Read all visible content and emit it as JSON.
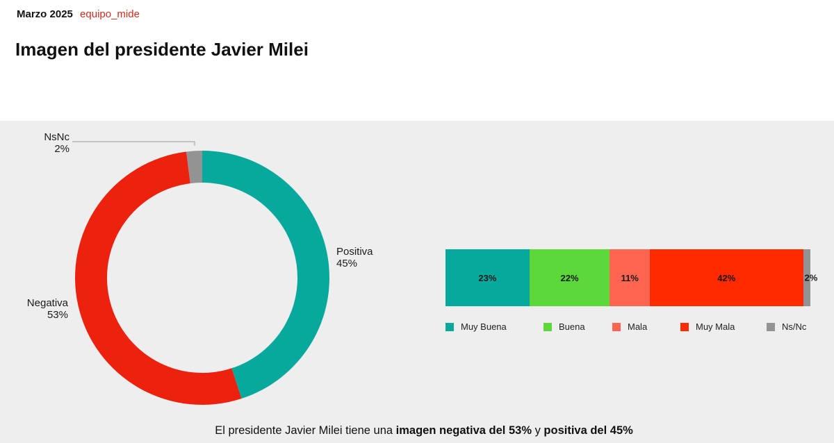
{
  "header": {
    "date": "Marzo 2025",
    "brand": "equipo_mide",
    "title": "Imagen del presidente Javier Milei"
  },
  "colors": {
    "positiva": "#07a99d",
    "negativa": "#ed220e",
    "nsnc": "#939393",
    "muy_buena": "#07a99d",
    "buena": "#5dd83a",
    "mala": "#ff6551",
    "muy_mala": "#ff2a00",
    "ns_nc": "#939393",
    "brand": "#d42a1e",
    "panel_bg": "#eeeeee"
  },
  "donut": {
    "labels": {
      "nsnc_name": "NsNc",
      "nsnc_value": "2%",
      "positiva_name": "Positiva",
      "positiva_value": "45%",
      "negativa_name": "Negativa",
      "negativa_value": "53%"
    }
  },
  "stacked": {
    "segments": [
      {
        "label": "23%"
      },
      {
        "label": "22%"
      },
      {
        "label": "11%"
      },
      {
        "label": "42%"
      },
      {
        "label": "2%"
      }
    ],
    "legend": [
      "Muy Buena",
      "Buena",
      "Mala",
      "Muy Mala",
      "Ns/Nc"
    ]
  },
  "caption": {
    "prefix": "El presidente Javier Milei tiene una ",
    "bold1": "imagen negativa del 53%",
    "middle": " y ",
    "bold2": "positiva del 45%"
  },
  "chart_data": [
    {
      "type": "pie",
      "variant": "donut",
      "title": "Imagen del presidente Javier Milei",
      "categories": [
        "Positiva",
        "Negativa",
        "NsNc"
      ],
      "values": [
        45,
        53,
        2
      ],
      "unit": "%",
      "colors": [
        "#07a99d",
        "#ed220e",
        "#939393"
      ],
      "start_angle": "12 o'clock, clockwise",
      "labels_outside": true
    },
    {
      "type": "bar",
      "orientation": "horizontal",
      "stacked": true,
      "normalized_to": 100,
      "categories": [
        "Muy Buena",
        "Buena",
        "Mala",
        "Muy Mala",
        "Ns/Nc"
      ],
      "values": [
        23,
        22,
        11,
        42,
        2
      ],
      "unit": "%",
      "colors": [
        "#07a99d",
        "#5dd83a",
        "#ff6551",
        "#ff2a00",
        "#939393"
      ],
      "data_labels": [
        "23%",
        "22%",
        "11%",
        "42%",
        "2%"
      ],
      "legend_position": "bottom"
    }
  ]
}
